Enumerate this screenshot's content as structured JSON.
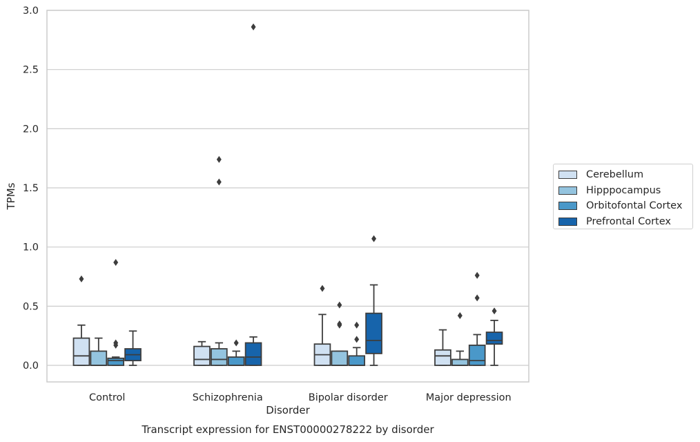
{
  "chart_data": {
    "type": "box",
    "title": "Transcript expression for ENST00000278222 by disorder",
    "xlabel": "Disorder",
    "ylabel": "TPMs",
    "ylim": [
      -0.14,
      3.0
    ],
    "yticks": [
      "0.0",
      "0.5",
      "1.0",
      "1.5",
      "2.0",
      "2.5",
      "3.0"
    ],
    "categories": [
      "Control",
      "Schizophrenia",
      "Bipolar disorder",
      "Major depression"
    ],
    "grid": "horizontal",
    "legend_position": "right",
    "series": [
      {
        "name": "Cerebellum",
        "color": "#d0e1f2",
        "boxes": [
          {
            "whislo": 0.0,
            "q1": 0.0,
            "med": 0.08,
            "q3": 0.23,
            "whishi": 0.34,
            "fliers": [
              0.73
            ]
          },
          {
            "whislo": 0.0,
            "q1": 0.0,
            "med": 0.05,
            "q3": 0.16,
            "whishi": 0.2,
            "fliers": []
          },
          {
            "whislo": 0.0,
            "q1": 0.0,
            "med": 0.09,
            "q3": 0.18,
            "whishi": 0.43,
            "fliers": [
              0.65
            ]
          },
          {
            "whislo": 0.0,
            "q1": 0.0,
            "med": 0.08,
            "q3": 0.13,
            "whishi": 0.3,
            "fliers": []
          }
        ]
      },
      {
        "name": "Hipppocampus",
        "color": "#94c4df",
        "boxes": [
          {
            "whislo": 0.0,
            "q1": 0.0,
            "med": 0.0,
            "q3": 0.12,
            "whishi": 0.23,
            "fliers": []
          },
          {
            "whislo": 0.0,
            "q1": 0.0,
            "med": 0.05,
            "q3": 0.14,
            "whishi": 0.19,
            "fliers": [
              1.74,
              1.55
            ]
          },
          {
            "whislo": 0.0,
            "q1": 0.0,
            "med": 0.0,
            "q3": 0.12,
            "whishi": 0.12,
            "fliers": [
              0.51,
              0.35,
              0.34
            ]
          },
          {
            "whislo": 0.0,
            "q1": 0.0,
            "med": 0.0,
            "q3": 0.05,
            "whishi": 0.12,
            "fliers": [
              0.42
            ]
          }
        ]
      },
      {
        "name": "Orbitofontal Cortex",
        "color": "#4a98c9",
        "boxes": [
          {
            "whislo": 0.0,
            "q1": 0.0,
            "med": 0.04,
            "q3": 0.06,
            "whishi": 0.07,
            "fliers": [
              0.19,
              0.17,
              0.87
            ]
          },
          {
            "whislo": 0.0,
            "q1": 0.0,
            "med": 0.0,
            "q3": 0.07,
            "whishi": 0.12,
            "fliers": [
              0.19
            ]
          },
          {
            "whislo": 0.0,
            "q1": 0.0,
            "med": 0.0,
            "q3": 0.08,
            "whishi": 0.15,
            "fliers": [
              0.34,
              0.22
            ]
          },
          {
            "whislo": 0.0,
            "q1": 0.0,
            "med": 0.04,
            "q3": 0.17,
            "whishi": 0.26,
            "fliers": [
              0.76,
              0.57
            ]
          }
        ]
      },
      {
        "name": "Prefrontal Cortex",
        "color": "#1764ab",
        "boxes": [
          {
            "whislo": 0.0,
            "q1": 0.04,
            "med": 0.09,
            "q3": 0.14,
            "whishi": 0.29,
            "fliers": []
          },
          {
            "whislo": 0.0,
            "q1": 0.0,
            "med": 0.07,
            "q3": 0.19,
            "whishi": 0.24,
            "fliers": [
              2.86
            ]
          },
          {
            "whislo": 0.0,
            "q1": 0.1,
            "med": 0.21,
            "q3": 0.44,
            "whishi": 0.68,
            "fliers": [
              1.07
            ]
          },
          {
            "whislo": 0.0,
            "q1": 0.18,
            "med": 0.21,
            "q3": 0.28,
            "whishi": 0.38,
            "fliers": [
              0.46
            ]
          }
        ]
      }
    ]
  }
}
